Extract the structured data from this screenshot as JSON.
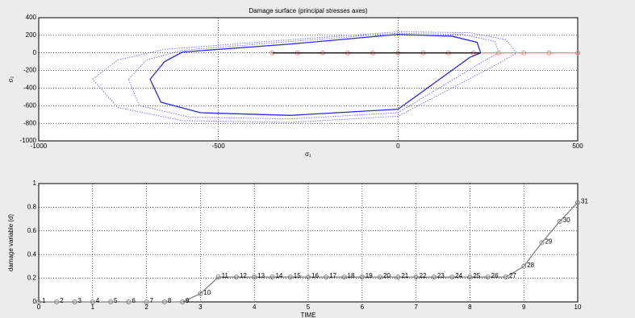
{
  "chart_data": [
    {
      "type": "line",
      "title": "Damage surface (principal stresses axes)",
      "xlabel": "σ₁",
      "ylabel": "σ₂",
      "xlim": [
        -1000,
        500
      ],
      "xticks": [
        -1000,
        -500,
        0,
        500
      ],
      "ylim": [
        -1000,
        400
      ],
      "yticks": [
        -1000,
        -800,
        -600,
        -400,
        -200,
        0,
        200,
        400
      ],
      "grid": true,
      "series": [
        {
          "color": "#6a6aff",
          "style": "dotted",
          "x": [
            -850,
            -780,
            -650,
            -300,
            0,
            200,
            300,
            330,
            280,
            0,
            -300,
            -600,
            -780,
            -850
          ],
          "y": [
            -300,
            -80,
            40,
            150,
            240,
            230,
            150,
            0,
            -120,
            -720,
            -790,
            -770,
            -620,
            -300
          ]
        },
        {
          "color": "#6a6aff",
          "style": "dotted",
          "x": [
            -750,
            -700,
            -600,
            -300,
            0,
            180,
            270,
            280,
            240,
            0,
            -300,
            -580,
            -720,
            -750
          ],
          "y": [
            -300,
            -80,
            30,
            130,
            225,
            210,
            130,
            0,
            -90,
            -680,
            -750,
            -730,
            -600,
            -300
          ]
        },
        {
          "color": "#2a2aee",
          "style": "solid",
          "x": [
            -600,
            -300,
            0,
            150,
            220,
            230,
            200,
            0,
            -300,
            -550,
            -660,
            -690,
            -650,
            -600
          ],
          "y": [
            10,
            100,
            210,
            190,
            120,
            0,
            -50,
            -640,
            -710,
            -680,
            -560,
            -300,
            -100,
            10
          ]
        },
        {
          "color": "#f08080",
          "style": "solid",
          "marker": true,
          "x": [
            -350,
            -280,
            -210,
            -140,
            -70,
            0,
            70,
            140,
            210,
            280,
            350,
            420,
            500
          ],
          "y": [
            0,
            0,
            0,
            0,
            0,
            0,
            0,
            0,
            0,
            0,
            0,
            0,
            0
          ]
        },
        {
          "color": "#000000",
          "style": "solid",
          "x": [
            -350,
            230
          ],
          "y": [
            0,
            0
          ]
        }
      ]
    },
    {
      "type": "line",
      "xlabel": "TIME",
      "ylabel": "damage variable (d)",
      "xlim": [
        0,
        10
      ],
      "xticks": [
        0,
        1,
        2,
        3,
        4,
        5,
        6,
        7,
        8,
        9,
        10
      ],
      "ylim": [
        0,
        1
      ],
      "yticks": [
        0,
        0.2,
        0.4,
        0.6,
        0.8,
        1
      ],
      "grid": true,
      "series": [
        {
          "color": "#808080",
          "style": "solid",
          "marker": true,
          "x": [
            0,
            0.333,
            0.667,
            1,
            1.333,
            1.667,
            2,
            2.333,
            2.667,
            3,
            3.333,
            3.667,
            4,
            4.333,
            4.667,
            5,
            5.333,
            5.667,
            6,
            6.333,
            6.667,
            7,
            7.333,
            7.667,
            8,
            8.333,
            8.667,
            9,
            9.333,
            9.667,
            10
          ],
          "y": [
            0,
            0,
            0,
            0,
            0,
            0,
            0,
            0,
            0,
            0.07,
            0.21,
            0.21,
            0.21,
            0.21,
            0.21,
            0.21,
            0.21,
            0.21,
            0.21,
            0.21,
            0.21,
            0.21,
            0.21,
            0.21,
            0.21,
            0.21,
            0.21,
            0.3,
            0.5,
            0.68,
            0.84
          ],
          "point_labels": [
            "1",
            "2",
            "3",
            "4",
            "5",
            "6",
            "7",
            "8",
            "9",
            "10",
            "11",
            "12",
            "13",
            "14",
            "15",
            "16",
            "17",
            "18",
            "19",
            "20",
            "21",
            "22",
            "23",
            "24",
            "25",
            "26",
            "27",
            "28",
            "29",
            "30",
            "31"
          ]
        }
      ]
    }
  ]
}
